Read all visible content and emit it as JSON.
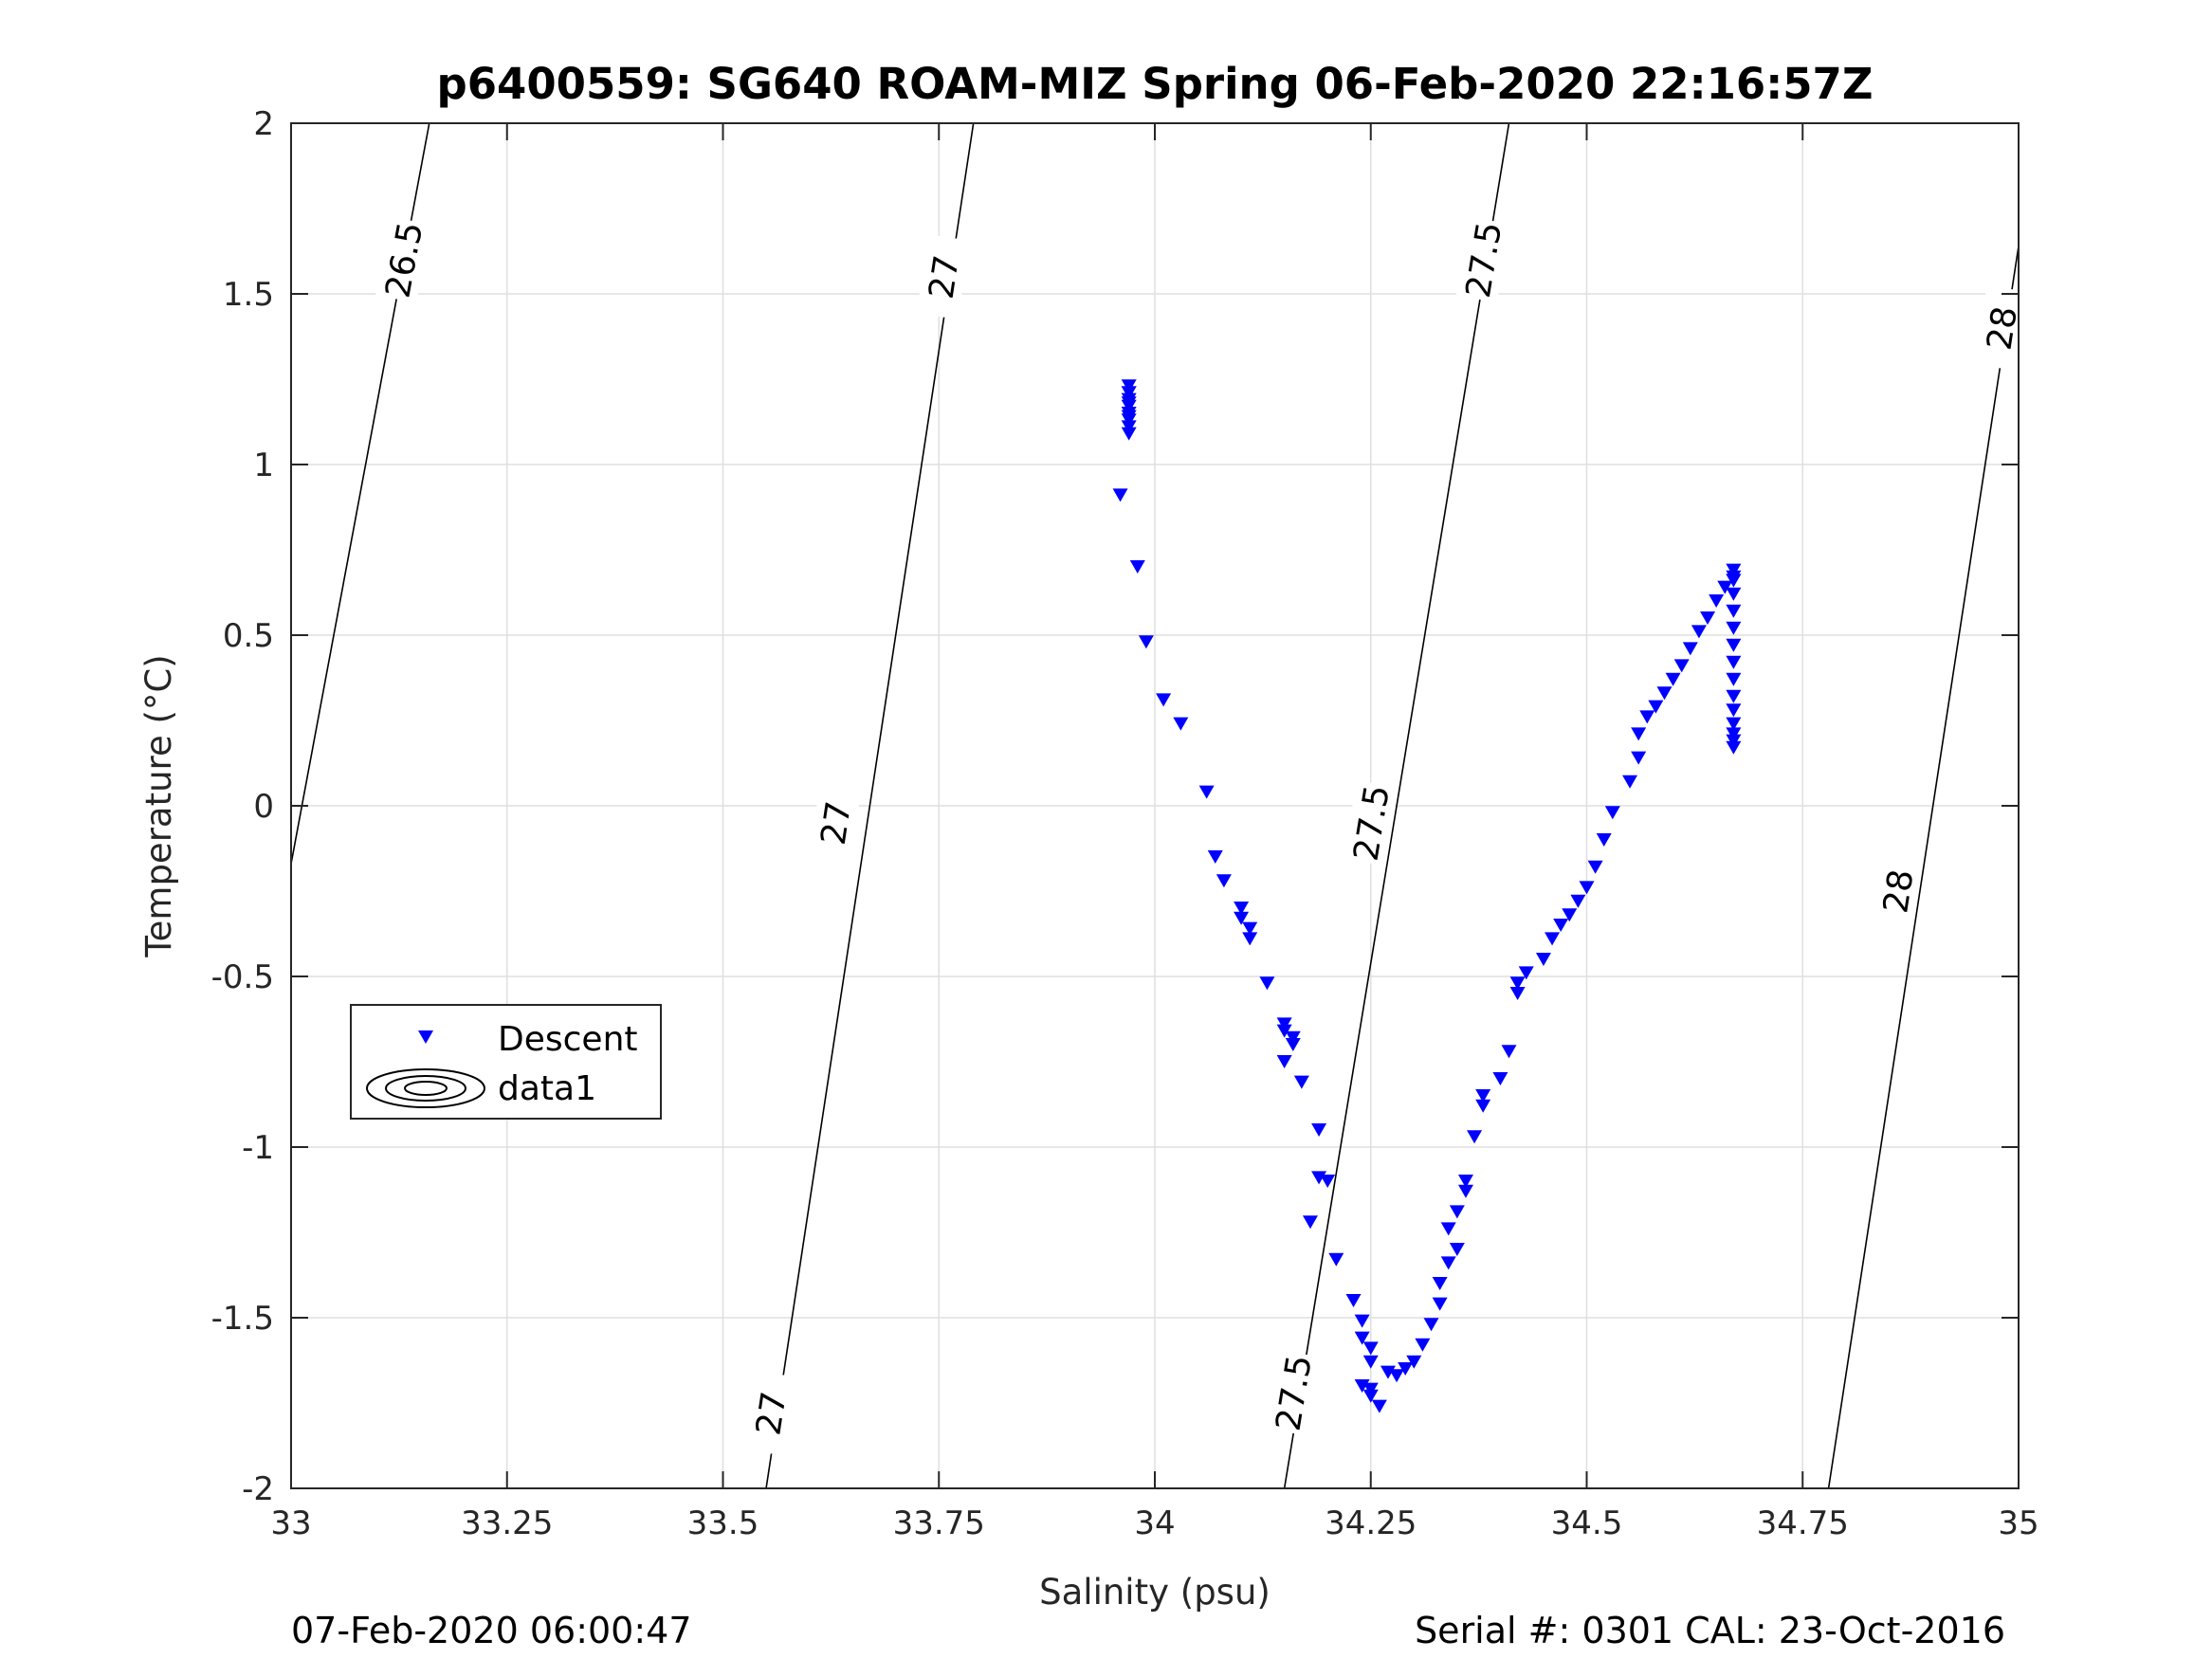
{
  "chart_data": {
    "type": "scatter",
    "title": "p6400559: SG640 ROAM-MIZ Spring 06-Feb-2020 22:16:57Z",
    "xlabel": "Salinity (psu)",
    "ylabel": "Temperature (°C)",
    "xlim": [
      33,
      35
    ],
    "ylim": [
      -2,
      2
    ],
    "xticks": [
      33,
      33.25,
      33.5,
      33.75,
      34,
      34.25,
      34.5,
      34.75,
      35
    ],
    "xtick_labels": [
      "33",
      "33.25",
      "33.5",
      "33.75",
      "34",
      "34.25",
      "34.5",
      "34.75",
      "35"
    ],
    "yticks": [
      -2,
      -1.5,
      -1,
      -0.5,
      0,
      0.5,
      1,
      1.5,
      2
    ],
    "ytick_labels": [
      "-2",
      "-1.5",
      "-1",
      "-0.5",
      "0",
      "0.5",
      "1",
      "1.5",
      "2"
    ],
    "grid": true,
    "legend": {
      "position": "center-left",
      "entries": [
        "Descent",
        "data1"
      ]
    },
    "series": [
      {
        "name": "Descent",
        "marker": "triangle-down",
        "color": "#0000ff",
        "x": [
          33.97,
          33.97,
          33.97,
          33.97,
          33.97,
          33.97,
          33.97,
          33.97,
          33.97,
          33.97,
          33.97,
          33.96,
          33.98,
          33.99,
          34.01,
          34.03,
          34.06,
          34.07,
          34.08,
          34.1,
          34.1,
          34.11,
          34.11,
          34.13,
          34.15,
          34.15,
          34.16,
          34.16,
          34.15,
          34.17,
          34.19,
          34.19,
          34.2,
          34.18,
          34.21,
          34.23,
          34.24,
          34.24,
          34.25,
          34.25,
          34.24,
          34.25,
          34.26,
          34.25,
          34.27,
          34.28,
          34.29,
          34.3,
          34.31,
          34.32,
          34.33,
          34.33,
          34.34,
          34.35,
          34.34,
          34.35,
          34.36,
          34.36,
          34.37,
          34.38,
          34.38,
          34.4,
          34.41,
          34.42,
          34.42,
          34.43,
          34.45,
          34.46,
          34.47,
          34.48,
          34.49,
          34.5,
          34.51,
          34.52,
          34.53,
          34.55,
          34.56,
          34.56,
          34.57,
          34.58,
          34.59,
          34.6,
          34.61,
          34.62,
          34.63,
          34.64,
          34.65,
          34.66,
          34.67,
          34.67,
          34.67,
          34.67,
          34.67,
          34.67,
          34.67,
          34.67,
          34.67,
          34.67,
          34.67,
          34.67,
          34.67,
          34.67,
          34.67,
          34.67
        ],
        "y": [
          1.23,
          1.21,
          1.19,
          1.17,
          1.15,
          1.13,
          1.11,
          1.09,
          1.21,
          1.18,
          1.14,
          0.91,
          0.7,
          0.48,
          0.31,
          0.24,
          0.04,
          -0.15,
          -0.22,
          -0.3,
          -0.33,
          -0.36,
          -0.39,
          -0.52,
          -0.64,
          -0.66,
          -0.68,
          -0.7,
          -0.75,
          -0.81,
          -0.95,
          -1.09,
          -1.1,
          -1.22,
          -1.33,
          -1.45,
          -1.51,
          -1.56,
          -1.59,
          -1.63,
          -1.7,
          -1.73,
          -1.76,
          -1.71,
          -1.66,
          -1.67,
          -1.65,
          -1.63,
          -1.58,
          -1.52,
          -1.46,
          -1.4,
          -1.34,
          -1.3,
          -1.24,
          -1.19,
          -1.13,
          -1.1,
          -0.97,
          -0.88,
          -0.85,
          -0.8,
          -0.72,
          -0.55,
          -0.52,
          -0.49,
          -0.45,
          -0.39,
          -0.35,
          -0.32,
          -0.28,
          -0.24,
          -0.18,
          -0.1,
          -0.02,
          0.07,
          0.14,
          0.21,
          0.26,
          0.29,
          0.33,
          0.37,
          0.41,
          0.46,
          0.51,
          0.55,
          0.6,
          0.64,
          0.67,
          0.69,
          0.66,
          0.62,
          0.57,
          0.52,
          0.47,
          0.42,
          0.37,
          0.32,
          0.28,
          0.24,
          0.21,
          0.19,
          0.17,
          0.66
        ]
      }
    ],
    "contours": [
      {
        "name": "data1",
        "levels": [
          {
            "value": 26.5,
            "x": [
              33.0,
              33.16
            ],
            "y": [
              -0.17,
              2.0
            ],
            "labels": [
              {
                "text": "26.5",
                "x": 33.13,
                "y": 1.6
              }
            ]
          },
          {
            "value": 27,
            "x": [
              33.55,
              33.79
            ],
            "y": [
              -2.0,
              2.0
            ],
            "labels": [
              {
                "text": "27",
                "x": 33.63,
                "y": -0.05
              },
              {
                "text": "27",
                "x": 33.555,
                "y": -1.78
              },
              {
                "text": "27",
                "x": 33.755,
                "y": 1.55
              }
            ]
          },
          {
            "value": 27.5,
            "x": [
              34.15,
              34.41
            ],
            "y": [
              -2.0,
              2.0
            ],
            "labels": [
              {
                "text": "27.5",
                "x": 34.16,
                "y": -1.72
              },
              {
                "text": "27.5",
                "x": 34.25,
                "y": -0.05
              },
              {
                "text": "27.5",
                "x": 34.38,
                "y": 1.6
              }
            ]
          },
          {
            "value": 28,
            "x": [
              34.78,
              35.0
            ],
            "y": [
              -2.0,
              1.64
            ],
            "labels": [
              {
                "text": "28",
                "x": 34.86,
                "y": -0.25
              },
              {
                "text": "28",
                "x": 34.98,
                "y": 1.4
              }
            ]
          }
        ]
      }
    ]
  },
  "footer": {
    "left": "07-Feb-2020 06:00:47",
    "right": "Serial #: 0301  CAL: 23-Oct-2016"
  }
}
